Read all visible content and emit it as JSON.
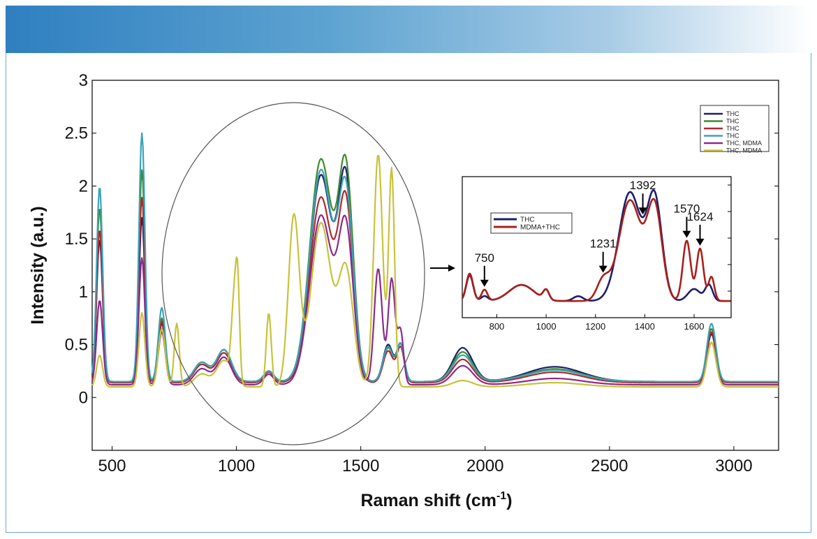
{
  "colors": {
    "header_start": "#2f7fc0",
    "frame": "#6fa8d6",
    "s1": "#1c1f6e",
    "s2": "#3e8a2e",
    "s3": "#b02a2a",
    "s4": "#3aa3b8",
    "s5": "#8a2a8e",
    "s6": "#c8c23a",
    "inset_thc": "#1c1f6e",
    "inset_mix": "#a8201a"
  },
  "chart_data": [
    {
      "type": "line",
      "title": "",
      "xlabel": "Raman shift (cm",
      "xlabel_sup": "-1",
      "xlabel_close": ")",
      "ylabel": "Intensity (a.u.)",
      "xlim": [
        420,
        3180
      ],
      "ylim": [
        -0.5,
        3
      ],
      "xticks": [
        500,
        1000,
        1500,
        2000,
        2500,
        3000
      ],
      "yticks": [
        0,
        0.5,
        1,
        1.5,
        2,
        2.5,
        3
      ],
      "ytick_labels": [
        "0",
        "0.5",
        "1",
        "1.5",
        "2",
        "2.5",
        "3"
      ],
      "legend_position": "top-right",
      "series": [
        {
          "name": "THC",
          "color_key": "s1",
          "baseline": 0.15,
          "peaks": [
            [
              450,
              1.35,
              12
            ],
            [
              620,
              1.55,
              12
            ],
            [
              700,
              0.55,
              14
            ],
            [
              860,
              0.18,
              30
            ],
            [
              950,
              0.3,
              30
            ],
            [
              1130,
              0.1,
              20
            ],
            [
              1340,
              1.95,
              45
            ],
            [
              1440,
              1.85,
              30
            ],
            [
              1610,
              0.35,
              20
            ],
            [
              1660,
              0.35,
              15
            ],
            [
              1910,
              0.32,
              40
            ],
            [
              2280,
              0.14,
              110
            ],
            [
              2910,
              0.45,
              18
            ]
          ]
        },
        {
          "name": "THC",
          "color_key": "s2",
          "baseline": 0.15,
          "peaks": [
            [
              450,
              1.65,
              12
            ],
            [
              620,
              2.0,
              12
            ],
            [
              700,
              0.6,
              14
            ],
            [
              860,
              0.18,
              30
            ],
            [
              950,
              0.3,
              30
            ],
            [
              1130,
              0.1,
              20
            ],
            [
              1340,
              2.1,
              45
            ],
            [
              1440,
              1.95,
              30
            ],
            [
              1610,
              0.32,
              20
            ],
            [
              1660,
              0.35,
              15
            ],
            [
              1910,
              0.28,
              40
            ],
            [
              2280,
              0.12,
              110
            ],
            [
              2910,
              0.5,
              18
            ]
          ]
        },
        {
          "name": "THC",
          "color_key": "s3",
          "baseline": 0.14,
          "peaks": [
            [
              450,
              1.45,
              12
            ],
            [
              620,
              1.75,
              12
            ],
            [
              700,
              0.58,
              14
            ],
            [
              860,
              0.17,
              30
            ],
            [
              950,
              0.28,
              30
            ],
            [
              1130,
              0.1,
              20
            ],
            [
              1340,
              1.75,
              45
            ],
            [
              1440,
              1.65,
              30
            ],
            [
              1610,
              0.3,
              20
            ],
            [
              1660,
              0.33,
              15
            ],
            [
              1910,
              0.22,
              40
            ],
            [
              2280,
              0.1,
              110
            ],
            [
              2910,
              0.48,
              18
            ]
          ]
        },
        {
          "name": "THC",
          "color_key": "s4",
          "baseline": 0.15,
          "peaks": [
            [
              450,
              1.85,
              12
            ],
            [
              620,
              2.35,
              12
            ],
            [
              700,
              0.7,
              14
            ],
            [
              860,
              0.18,
              30
            ],
            [
              950,
              0.3,
              30
            ],
            [
              1130,
              0.1,
              20
            ],
            [
              1340,
              2.0,
              45
            ],
            [
              1440,
              1.75,
              30
            ],
            [
              1610,
              0.33,
              20
            ],
            [
              1660,
              0.35,
              15
            ],
            [
              1910,
              0.25,
              40
            ],
            [
              2280,
              0.11,
              110
            ],
            [
              2910,
              0.55,
              18
            ]
          ]
        },
        {
          "name": "THC, MDMA",
          "color_key": "s5",
          "baseline": 0.12,
          "peaks": [
            [
              450,
              0.8,
              12
            ],
            [
              620,
              1.2,
              12
            ],
            [
              700,
              0.5,
              14
            ],
            [
              860,
              0.15,
              30
            ],
            [
              950,
              0.26,
              30
            ],
            [
              1130,
              0.1,
              20
            ],
            [
              1340,
              1.6,
              45
            ],
            [
              1440,
              1.45,
              30
            ],
            [
              1570,
              1.1,
              16
            ],
            [
              1624,
              1.0,
              14
            ],
            [
              1660,
              0.5,
              12
            ],
            [
              1910,
              0.18,
              40
            ],
            [
              2280,
              0.06,
              110
            ],
            [
              2910,
              0.4,
              18
            ]
          ]
        },
        {
          "name": "THC, MDMA",
          "color_key": "s6",
          "baseline": 0.1,
          "peaks": [
            [
              450,
              0.3,
              12
            ],
            [
              620,
              0.7,
              12
            ],
            [
              700,
              0.55,
              14
            ],
            [
              760,
              0.6,
              10
            ],
            [
              860,
              0.12,
              30
            ],
            [
              950,
              0.25,
              30
            ],
            [
              990,
              0.7,
              10
            ],
            [
              1005,
              0.9,
              8
            ],
            [
              1130,
              0.7,
              10
            ],
            [
              1231,
              1.6,
              22
            ],
            [
              1340,
              1.55,
              40
            ],
            [
              1440,
              1.1,
              30
            ],
            [
              1570,
              2.2,
              18
            ],
            [
              1624,
              2.05,
              12
            ],
            [
              1910,
              0.06,
              40
            ],
            [
              2280,
              0.04,
              110
            ],
            [
              2910,
              0.42,
              18
            ]
          ]
        }
      ]
    },
    {
      "type": "line",
      "title": "",
      "xlim": [
        660,
        1750
      ],
      "xticks": [
        800,
        1000,
        1200,
        1400,
        1600
      ],
      "legend_position": "top-left",
      "annotations": [
        {
          "x": 750,
          "label": "750"
        },
        {
          "x": 1231,
          "label": "1231"
        },
        {
          "x": 1392,
          "label": "1392"
        },
        {
          "x": 1570,
          "label": "1570"
        },
        {
          "x": 1624,
          "label": "1624"
        }
      ],
      "series": [
        {
          "name": "THC",
          "color_key": "inset_thc",
          "baseline": 0.12,
          "peaks": [
            [
              690,
              0.32,
              14
            ],
            [
              750,
              0.06,
              14
            ],
            [
              900,
              0.2,
              50
            ],
            [
              1000,
              0.12,
              12
            ],
            [
              1130,
              0.06,
              20
            ],
            [
              1340,
              1.35,
              45
            ],
            [
              1440,
              1.25,
              30
            ],
            [
              1600,
              0.15,
              25
            ],
            [
              1660,
              0.2,
              15
            ]
          ]
        },
        {
          "name": "MDMA+THC",
          "color_key": "inset_mix",
          "baseline": 0.12,
          "peaks": [
            [
              690,
              0.34,
              14
            ],
            [
              750,
              0.14,
              12
            ],
            [
              900,
              0.2,
              50
            ],
            [
              1000,
              0.12,
              12
            ],
            [
              1231,
              0.25,
              25
            ],
            [
              1340,
              1.25,
              45
            ],
            [
              1440,
              1.15,
              30
            ],
            [
              1570,
              0.75,
              16
            ],
            [
              1624,
              0.65,
              14
            ],
            [
              1670,
              0.3,
              12
            ]
          ]
        }
      ]
    }
  ]
}
